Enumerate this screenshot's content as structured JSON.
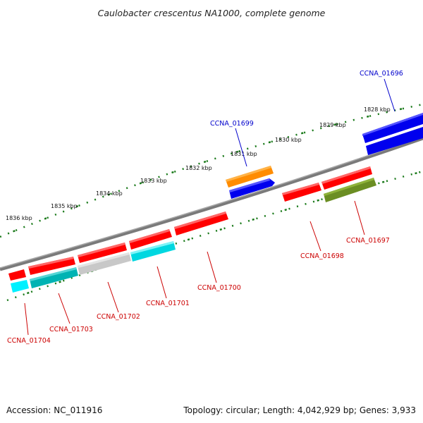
{
  "title": "Caulobacter crescentus NA1000, complete genome",
  "footer": {
    "accession": "Accession: NC_011916",
    "info": "Topology: circular; Length: 4,042,929 bp; Genes: 3,933"
  },
  "colors": {
    "backbone": "#808080",
    "ruler": "#1a7a1a",
    "forward_label": "#0000cc",
    "reverse_label": "#cc0000",
    "red": "#ff0000",
    "blue": "#0000ee",
    "orange": "#ff8c00",
    "cyan": "#00e5ee",
    "teal": "#00b3b3",
    "grey": "#c8c8c8",
    "olive": "#6b8e23"
  },
  "ruler_labels": [
    "1836 kbp",
    "1835 kbp",
    "1834 kbp",
    "1833 kbp",
    "1832 kbp",
    "1831 kbp",
    "1830 kbp",
    "1829 kbp",
    "1828 kbp"
  ],
  "gene_labels": {
    "CCNA_01696": "CCNA_01696",
    "CCNA_01697": "CCNA_01697",
    "CCNA_01698": "CCNA_01698",
    "CCNA_01699": "CCNA_01699",
    "CCNA_01700": "CCNA_01700",
    "CCNA_01701": "CCNA_01701",
    "CCNA_01702": "CCNA_01702",
    "CCNA_01703": "CCNA_01703",
    "CCNA_01704": "CCNA_01704"
  }
}
